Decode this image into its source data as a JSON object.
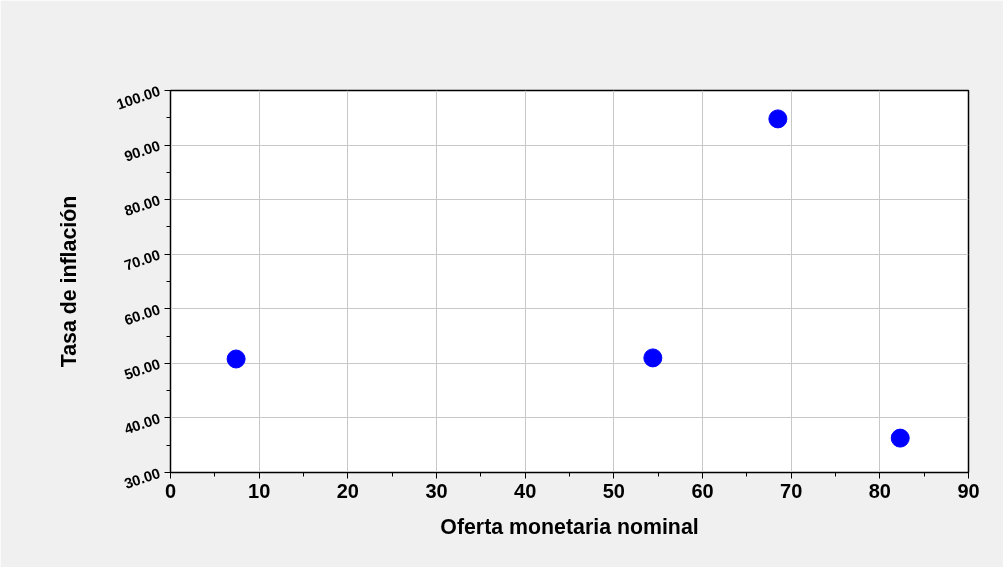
{
  "chart_data": {
    "type": "scatter",
    "xlabel": "Oferta monetaria nominal",
    "ylabel": "Tasa de inflación",
    "x": [
      7.4,
      54.4,
      68.5,
      82.3
    ],
    "series": [
      {
        "color": "#0000ff",
        "values": [
          50.8,
          51.0,
          94.8,
          36.3
        ]
      }
    ],
    "xlim": [
      0,
      90
    ],
    "ylim": [
      30,
      100
    ],
    "xticks": [
      0,
      10,
      20,
      30,
      40,
      50,
      60,
      70,
      80,
      90
    ],
    "yticks": [
      {
        "value": 30,
        "label": "30.00"
      },
      {
        "value": 40,
        "label": "40.00"
      },
      {
        "value": 50,
        "label": "50.00"
      },
      {
        "value": 60,
        "label": "60.00"
      },
      {
        "value": 70,
        "label": "70.00"
      },
      {
        "value": 80,
        "label": "80.00"
      },
      {
        "value": 90,
        "label": "90.00"
      },
      {
        "value": 100,
        "label": "100.00"
      }
    ],
    "grid": true,
    "marker": "circle"
  }
}
